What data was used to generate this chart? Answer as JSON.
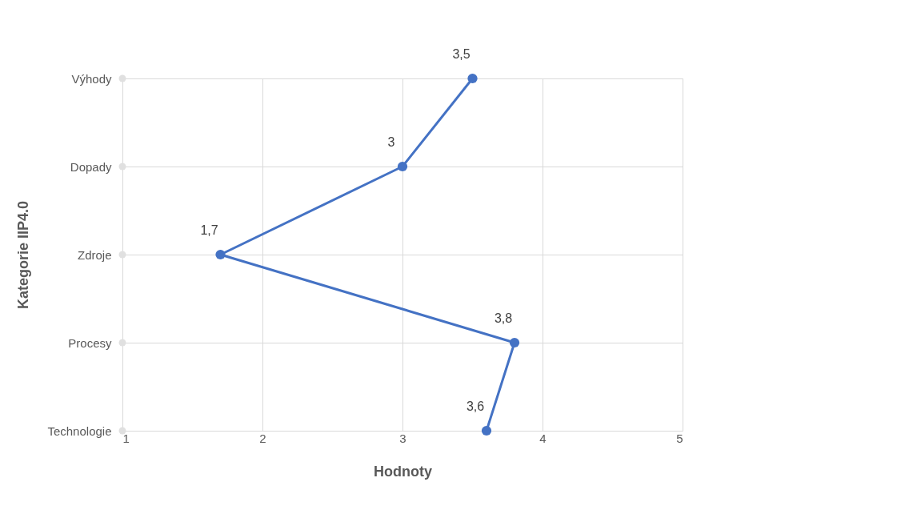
{
  "chart_data": {
    "type": "line",
    "orientation": "horizontal",
    "xlabel": "Hodnoty",
    "ylabel": "Kategorie IIP4.0",
    "categories": [
      "Výhody",
      "Dopady",
      "Zdroje",
      "Procesy",
      "Technologie"
    ],
    "series": [
      {
        "color": "#4472c4",
        "values": [
          3.5,
          3,
          1.7,
          3.8,
          3.6
        ],
        "value_labels": [
          "3,5",
          "3",
          "1,7",
          "3,8",
          "3,6"
        ]
      },
      {
        "type": "scatter",
        "color": "#e0e0e0",
        "values": [
          1,
          1,
          1,
          1,
          1
        ]
      }
    ],
    "xlim": [
      1,
      5
    ],
    "xticks": [
      1,
      2,
      3,
      4,
      5
    ],
    "grid": true,
    "marker": "circle",
    "line_style": "solid"
  }
}
